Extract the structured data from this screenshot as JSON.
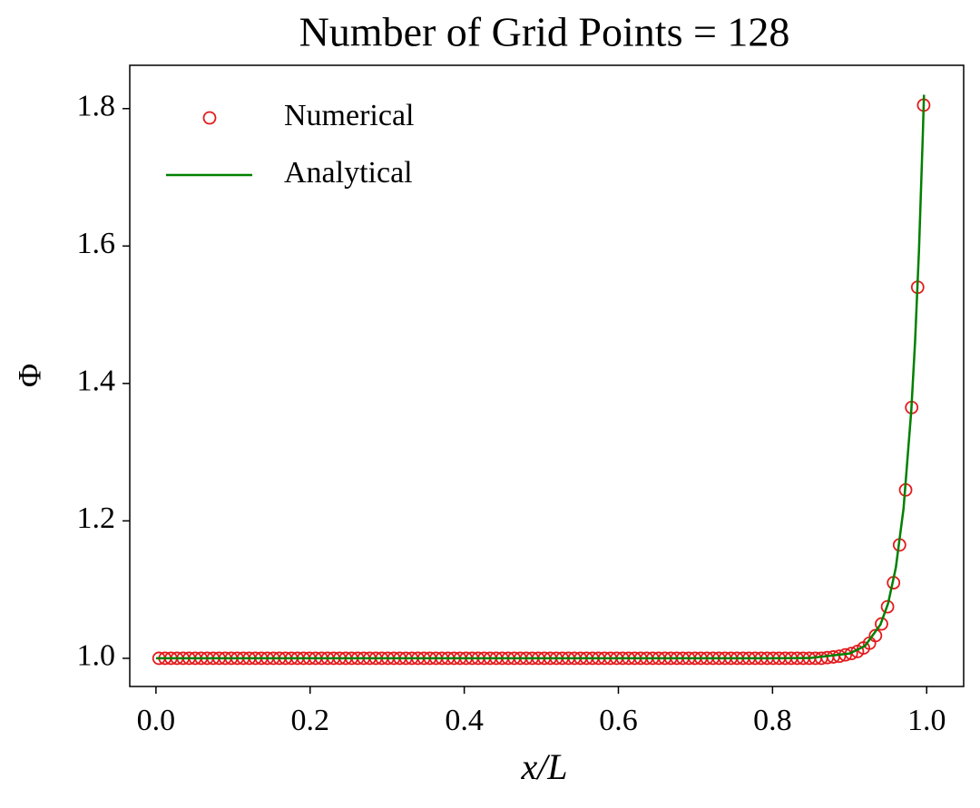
{
  "chart_data": {
    "type": "scatter",
    "title": "Number of Grid Points = 128",
    "x_label": "x/L",
    "y_label": "Φ",
    "xlim": [
      -0.034,
      1.048
    ],
    "ylim": [
      0.959,
      1.863
    ],
    "xticks": [
      {
        "value": 0,
        "label": "0.0"
      },
      {
        "value": 0.2,
        "label": "0.2"
      },
      {
        "value": 0.4,
        "label": "0.4"
      },
      {
        "value": 0.6,
        "label": "0.6"
      },
      {
        "value": 0.8,
        "label": "0.8"
      },
      {
        "value": 1,
        "label": "1.0"
      }
    ],
    "yticks": [
      {
        "value": 1,
        "label": "1.0"
      },
      {
        "value": 1.2,
        "label": "1.2"
      },
      {
        "value": 1.4,
        "label": "1.4"
      },
      {
        "value": 1.6,
        "label": "1.6"
      },
      {
        "value": 1.8,
        "label": "1.8"
      }
    ],
    "grid": false,
    "legend": "upper left",
    "series": [
      {
        "name": "Numerical",
        "color": "#e31a1c",
        "style": "markers",
        "x": [
          0.0039,
          0.0117,
          0.0195,
          0.0273,
          0.0352,
          0.043,
          0.0508,
          0.0586,
          0.0664,
          0.0742,
          0.082,
          0.0898,
          0.0977,
          0.1055,
          0.1133,
          0.1211,
          0.1289,
          0.1367,
          0.1445,
          0.1523,
          0.1602,
          0.168,
          0.1758,
          0.1836,
          0.1914,
          0.1992,
          0.207,
          0.2148,
          0.2227,
          0.2305,
          0.2383,
          0.2461,
          0.2539,
          0.2617,
          0.2695,
          0.2773,
          0.2852,
          0.293,
          0.3008,
          0.3086,
          0.3164,
          0.3242,
          0.332,
          0.3398,
          0.3477,
          0.3555,
          0.3633,
          0.3711,
          0.3789,
          0.3867,
          0.3945,
          0.4023,
          0.4102,
          0.418,
          0.4258,
          0.4336,
          0.4414,
          0.4492,
          0.457,
          0.4648,
          0.4727,
          0.4805,
          0.4883,
          0.4961,
          0.5039,
          0.5117,
          0.5195,
          0.5273,
          0.5352,
          0.543,
          0.5508,
          0.5586,
          0.5664,
          0.5742,
          0.582,
          0.5898,
          0.5977,
          0.6055,
          0.6133,
          0.6211,
          0.6289,
          0.6367,
          0.6445,
          0.6523,
          0.6602,
          0.668,
          0.6758,
          0.6836,
          0.6914,
          0.6992,
          0.707,
          0.7148,
          0.7227,
          0.7305,
          0.7383,
          0.7461,
          0.7539,
          0.7617,
          0.7695,
          0.7773,
          0.7852,
          0.793,
          0.8008,
          0.8086,
          0.8164,
          0.8242,
          0.832,
          0.8398,
          0.8477,
          0.8555,
          0.8633,
          0.8711,
          0.8789,
          0.8867,
          0.8945,
          0.9023,
          0.9102,
          0.918,
          0.9258,
          0.9336,
          0.9414,
          0.9492,
          0.957,
          0.9648,
          0.9727,
          0.9805,
          0.9883,
          0.9961
        ],
        "values": [
          1,
          1,
          1,
          1,
          1,
          1,
          1,
          1,
          1,
          1,
          1,
          1,
          1,
          1,
          1,
          1,
          1,
          1,
          1,
          1,
          1,
          1,
          1,
          1,
          1,
          1,
          1,
          1,
          1,
          1,
          1,
          1,
          1,
          1,
          1,
          1,
          1,
          1,
          1,
          1,
          1,
          1,
          1,
          1,
          1,
          1,
          1,
          1,
          1,
          1,
          1,
          1,
          1,
          1,
          1,
          1,
          1,
          1,
          1,
          1,
          1,
          1,
          1,
          1,
          1,
          1,
          1,
          1,
          1,
          1,
          1,
          1,
          1,
          1,
          1,
          1,
          1,
          1,
          1,
          1,
          1,
          1,
          1,
          1,
          1,
          1,
          1,
          1,
          1,
          1,
          1,
          1,
          1,
          1,
          1,
          1,
          1,
          1,
          1,
          1,
          1,
          1,
          1,
          1,
          1,
          1,
          1,
          1,
          1,
          1,
          1,
          1.001,
          1.002,
          1.003,
          1.005,
          1.007,
          1.01,
          1.015,
          1.022,
          1.033,
          1.05,
          1.075,
          1.11,
          1.165,
          1.245,
          1.365,
          1.54,
          1.805
        ]
      },
      {
        "name": "Analytical",
        "color": "#008000",
        "style": "line",
        "x": [
          0,
          0.1,
          0.2,
          0.3,
          0.4,
          0.5,
          0.6,
          0.7,
          0.8,
          0.85,
          0.9,
          0.92,
          0.94,
          0.95,
          0.96,
          0.97,
          0.98,
          0.985,
          0.99,
          0.995,
          0.9965
        ],
        "values": [
          1,
          1,
          1,
          1,
          1,
          1,
          1,
          1,
          1,
          1.0005,
          1.007,
          1.018,
          1.049,
          1.08,
          1.132,
          1.218,
          1.36,
          1.462,
          1.593,
          1.762,
          1.82
        ]
      }
    ]
  }
}
